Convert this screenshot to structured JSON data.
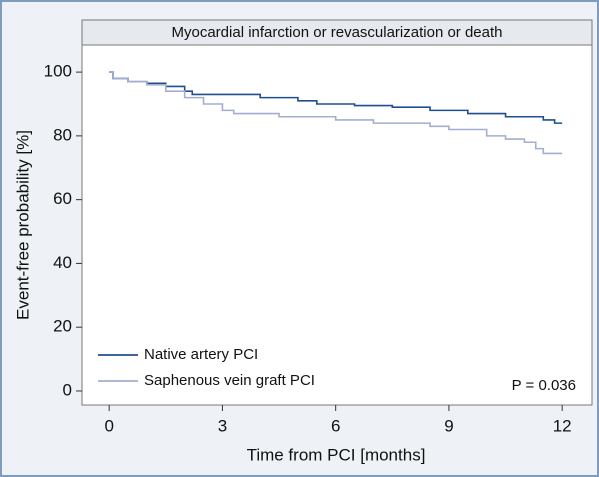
{
  "chart_data": {
    "type": "step",
    "title": "Myocardial infarction or revascularization or death",
    "xlabel": "Time from PCI [months]",
    "ylabel": "Event-free probability [%]",
    "annotation": "P = 0.036",
    "xlim": [
      -0.72,
      12.79
    ],
    "xticks": [
      0,
      3,
      6,
      9,
      12
    ],
    "ylim": [
      -4.4,
      108.5
    ],
    "yticks": [
      0,
      20,
      40,
      60,
      80,
      100
    ],
    "legend": "lower left",
    "series": [
      {
        "name": "Native artery PCI",
        "color": "#1f4f8f",
        "x": [
          0,
          0.1,
          0.5,
          1,
          1.5,
          2,
          2.2,
          4,
          5,
          5.5,
          6.5,
          7.5,
          8.5,
          9.5,
          10.5,
          11.5,
          11.8,
          12
        ],
        "values": [
          100,
          98,
          97,
          96.5,
          95.5,
          94,
          93,
          92,
          91,
          90,
          89.5,
          89,
          88,
          87,
          86,
          85,
          84,
          84
        ]
      },
      {
        "name": "Saphenous vein graft PCI",
        "color": "#a3aed0",
        "x": [
          0,
          0.1,
          0.5,
          1,
          1.5,
          2,
          2.5,
          3,
          3.3,
          4.5,
          6,
          7,
          8.5,
          9,
          10,
          10.5,
          11,
          11.3,
          11.5,
          12
        ],
        "values": [
          100,
          98,
          97,
          96,
          94,
          92,
          90,
          88,
          87,
          86,
          85,
          84,
          83,
          82,
          80,
          79,
          78,
          76,
          74.5,
          74.5
        ]
      }
    ]
  }
}
